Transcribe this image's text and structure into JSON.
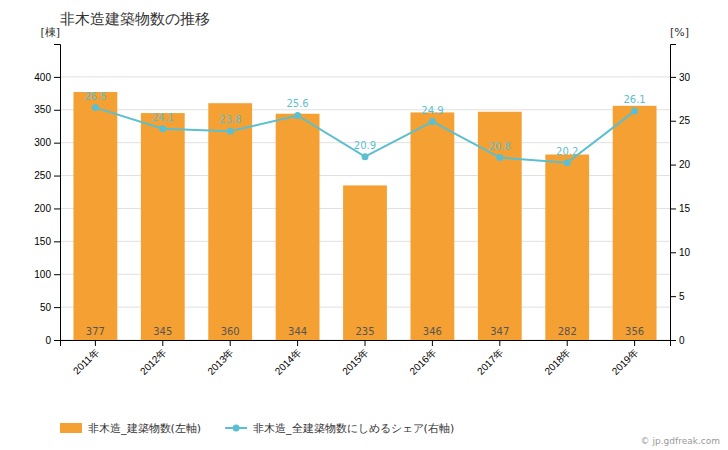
{
  "chart_data": {
    "type": "bar",
    "title": "非木造建築物数の推移",
    "categories": [
      "2011年",
      "2012年",
      "2013年",
      "2014年",
      "2015年",
      "2016年",
      "2017年",
      "2018年",
      "2019年"
    ],
    "series": [
      {
        "name": "非木造_建築物数(左軸)",
        "type": "bar",
        "color": "#f5a033",
        "values": [
          377,
          345,
          360,
          344,
          235,
          346,
          347,
          282,
          356
        ]
      },
      {
        "name": "非木造_全建築物数にしめるシェア(右軸)",
        "type": "line",
        "axis": "y2",
        "color": "#5bbfcf",
        "marker": "circle",
        "values": [
          26.5,
          24.1,
          23.8,
          25.6,
          20.9,
          24.9,
          20.8,
          20.2,
          26.1
        ]
      }
    ],
    "ylabel": "[棟]",
    "y2label": "[%]",
    "ylim": [
      0,
      450
    ],
    "yticks": [
      0,
      50,
      100,
      150,
      200,
      250,
      300,
      350,
      400
    ],
    "y2lim": [
      0,
      33.75
    ],
    "y2ticks": [
      0,
      5,
      10,
      15,
      20,
      25,
      30
    ],
    "grid": true,
    "legend": "bottom",
    "data_labels": true,
    "annotation": "© jp.gdfreak.com"
  }
}
